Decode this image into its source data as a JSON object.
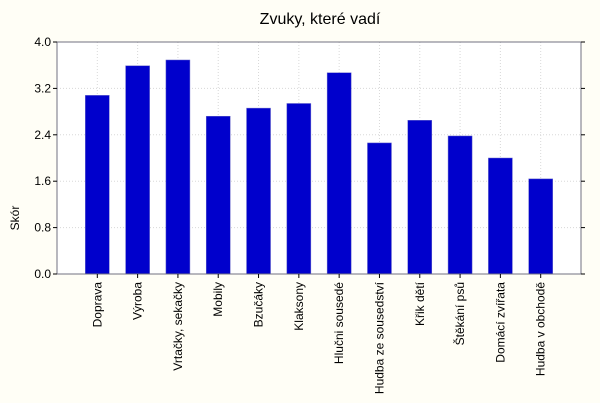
{
  "chart_data": {
    "type": "bar",
    "title": "Zvuky, které vadí",
    "xlabel": "",
    "ylabel": "Skór",
    "ylim": [
      0,
      4.0
    ],
    "yticks": [
      "0.0",
      "0.8",
      "1.6",
      "2.4",
      "3.2",
      "4.0"
    ],
    "grid": true,
    "bar_color": "#0000cc",
    "categories": [
      "Doprava",
      "Výroba",
      "Vrtačky, sekačky",
      "Mobily",
      "Bzučáky",
      "Klaksony",
      "Hlučni sousedé",
      "Hudba ze sousedství",
      "Křik dětí",
      "Štěkání psů",
      "Domácí zvířata",
      "Hudba v obchodě"
    ],
    "values": [
      3.08,
      3.59,
      3.69,
      2.72,
      2.86,
      2.94,
      3.47,
      2.26,
      2.65,
      2.38,
      2.0,
      1.64
    ]
  }
}
